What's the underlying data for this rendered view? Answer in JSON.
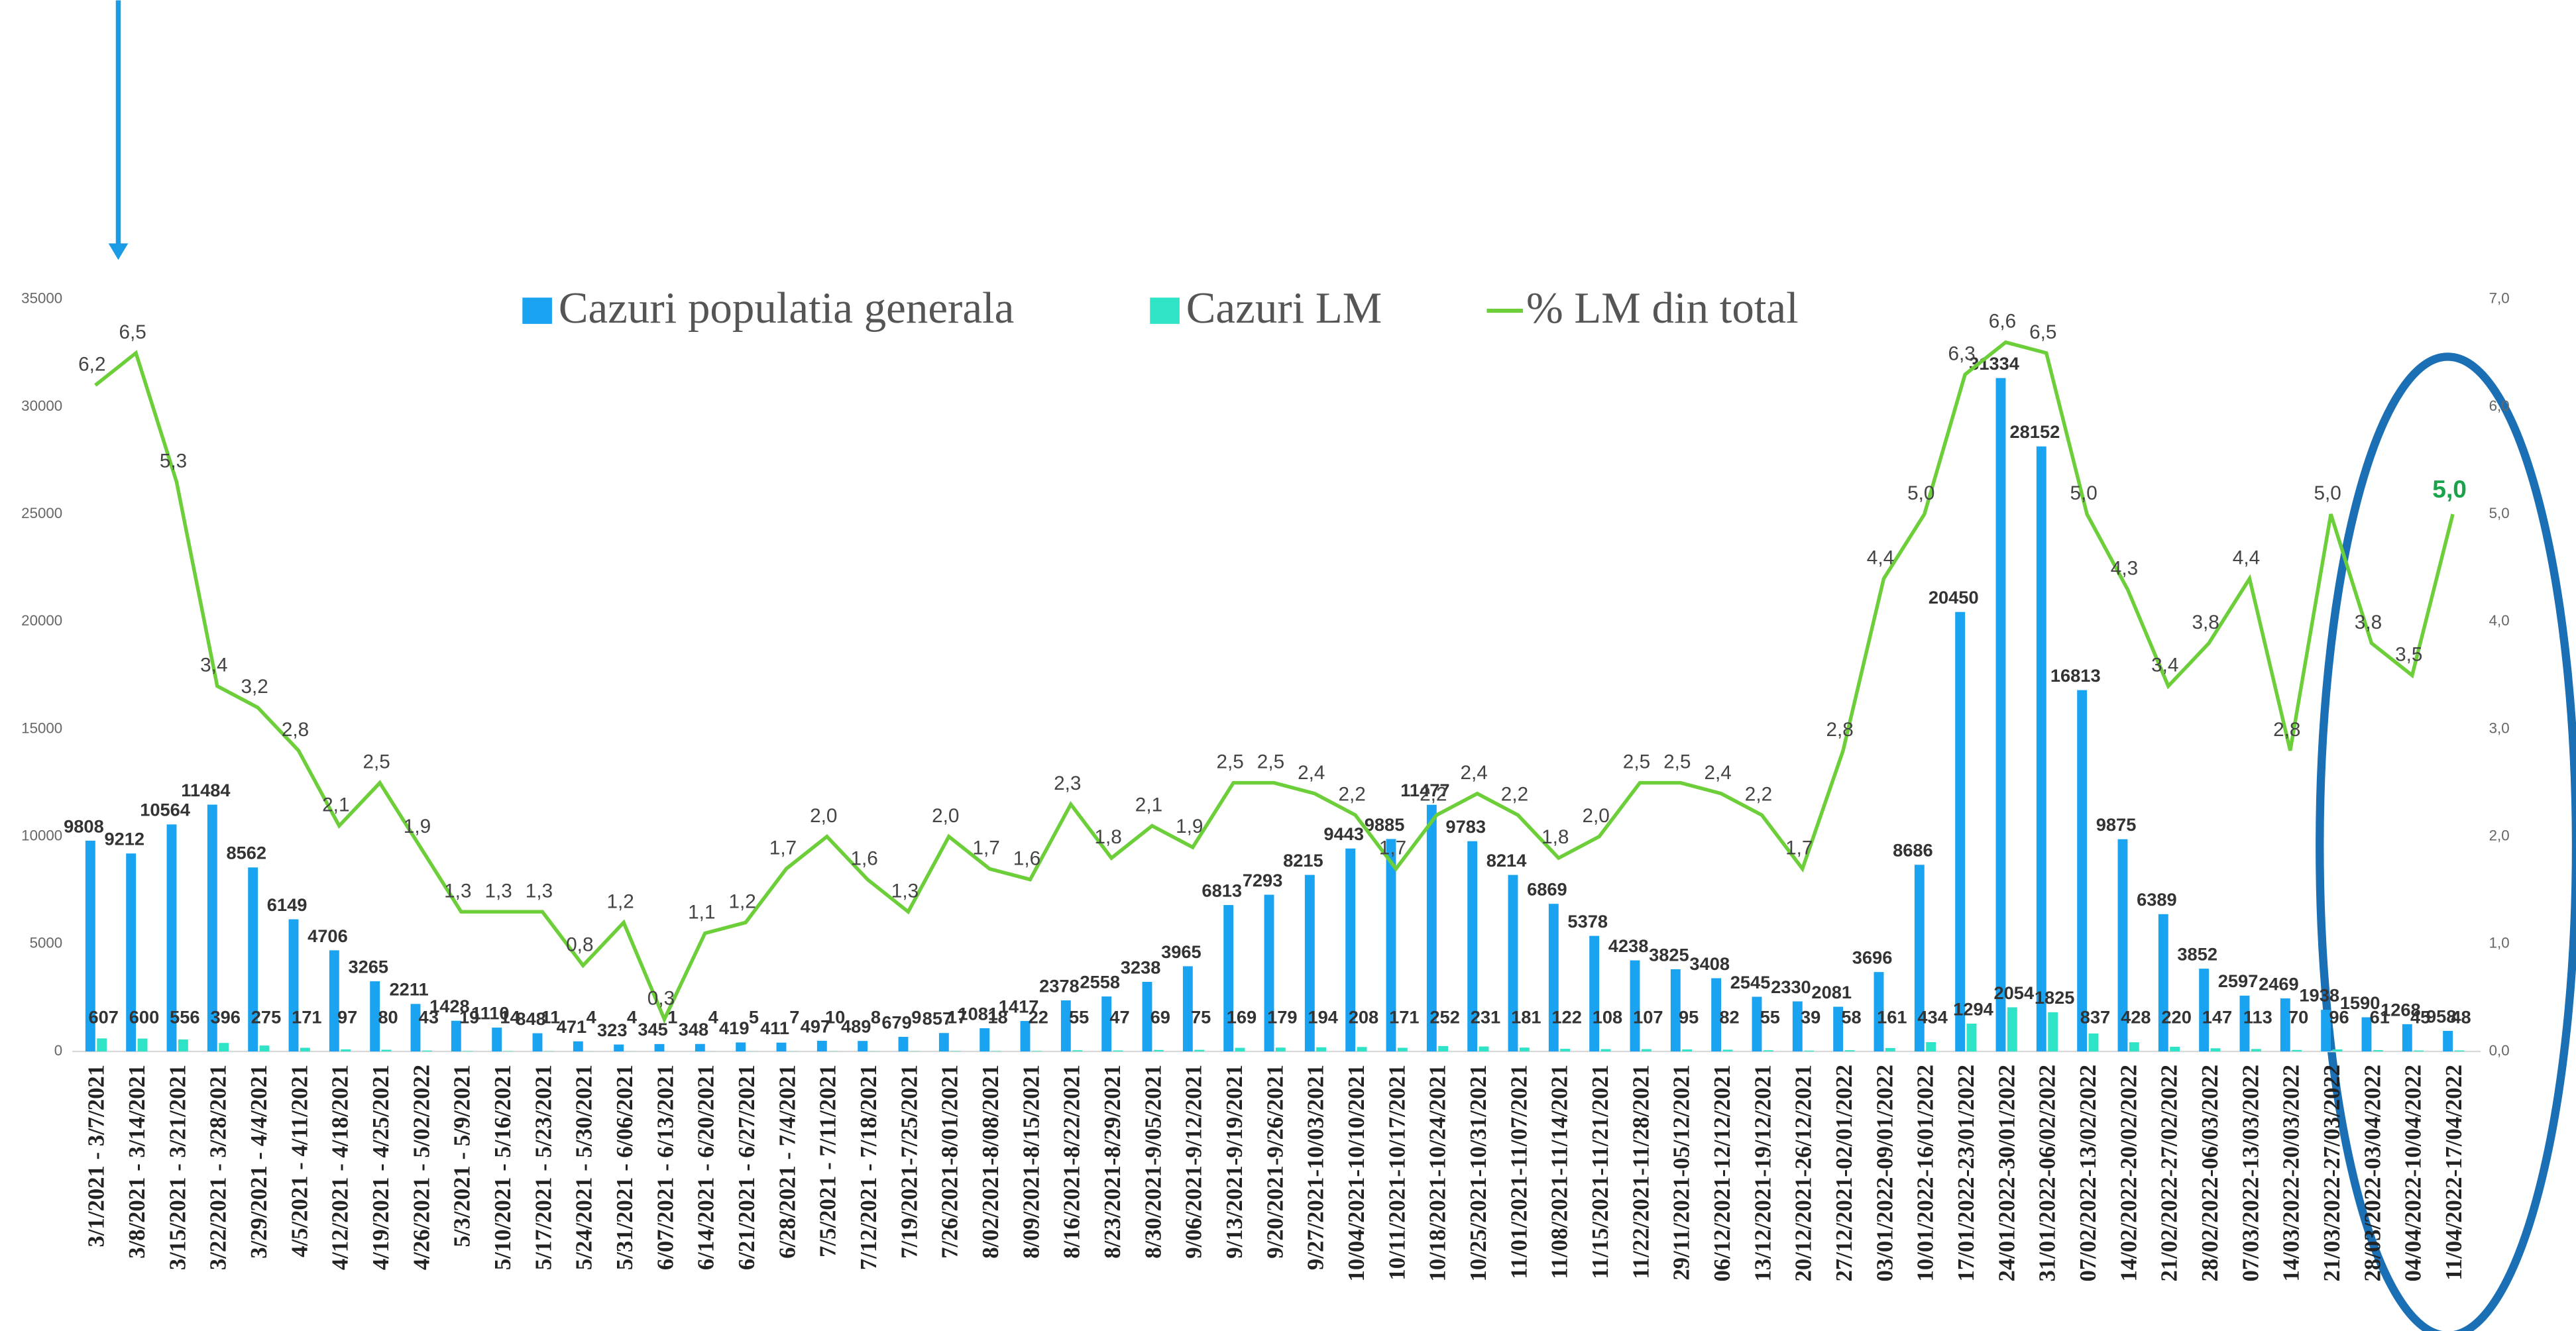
{
  "chart_data": {
    "type": "bar-line",
    "categories": [
      "3/1/2021 - 3/7/2021",
      "3/8/2021 - 3/14/2021",
      "3/15/2021 - 3/21/2021",
      "3/22/2021 - 3/28/2021",
      "3/29/2021 - 4/4/2021",
      "4/5/2021 - 4/11/2021",
      "4/12/2021 - 4/18/2021",
      "4/19/2021 - 4/25/2021",
      "4/26/2021 - 5/02/2022",
      "5/3/2021 - 5/9/2021",
      "5/10/2021 - 5/16/2021",
      "5/17/2021 - 5/23/2021",
      "5/24/2021 - 5/30/2021",
      "5/31/2021 - 6/06/2021",
      "6/07/2021 - 6/13/2021",
      "6/14/2021 - 6/20/2021",
      "6/21/2021 - 6/27/2021",
      "6/28/2021 - 7/4/2021",
      "7/5/2021 - 7/11/2021",
      "7/12/2021 - 7/18/2021",
      "7/19/2021-7/25/2021",
      "7/26/2021-8/01/2021",
      "8/02/2021-8/08/2021",
      "8/09/2021-8/15/2021",
      "8/16/2021-8/22/2021",
      "8/23/2021-8/29/2021",
      "8/30/2021-9/05/2021",
      "9/06/2021-9/12/2021",
      "9/13/2021-9/19/2021",
      "9/20/2021-9/26/2021",
      "9/27/2021-10/03/2021",
      "10/04/2021-10/10/2021",
      "10/11/2021-10/17/2021",
      "10/18/2021-10/24/2021",
      "10/25/2021-10/31/2021",
      "11/01/2021-11/07/2021",
      "11/08/2021-11/14/2021",
      "11/15/2021-11/21/2021",
      "11/22/2021-11/28/2021",
      "29/11/2021-05/12/2021",
      "06/12/2021-12/12/2021",
      "13/12/2021-19/12/2021",
      "20/12/2021-26/12/2021",
      "27/12/2021-02/01/2022",
      "03/01/2022-09/01/2022",
      "10/01/2022-16/01/2022",
      "17/01/2022-23/01/2022",
      "24/01/2022-30/01/2022",
      "31/01/2022-06/02/2022",
      "07/02/2022-13/02/2022",
      "14/02/2022-20/02/2022",
      "21/02/2022-27/02/2022",
      "28/02/2022-06/03/2022",
      "07/03/2022-13/03/2022",
      "14/03/2022-20/03/2022",
      "21/03/2022-27/03/2022",
      "28/03/2022-03/04/2022",
      "04/04/2022-10/04/2022",
      "11/04/2022-17/04/2022"
    ],
    "series": [
      {
        "name": "Cazuri populatia generala",
        "color": "#1aa3f0",
        "values": [
          9808,
          9212,
          10564,
          11484,
          8562,
          6149,
          4706,
          3265,
          2211,
          1428,
          1110,
          848,
          471,
          323,
          345,
          348,
          419,
          411,
          497,
          489,
          679,
          857,
          1081,
          1417,
          2378,
          2558,
          3238,
          3965,
          6813,
          7293,
          8215,
          9443,
          9885,
          11477,
          9783,
          8214,
          6869,
          5378,
          4238,
          3825,
          3408,
          2545,
          2330,
          2081,
          3696,
          8686,
          20450,
          31334,
          28152,
          16813,
          9875,
          6389,
          3852,
          2597,
          2469,
          1938,
          1590,
          1268,
          958
        ]
      },
      {
        "name": "Cazuri LM",
        "color": "#2ee3c6",
        "values": [
          607,
          600,
          556,
          396,
          275,
          171,
          97,
          80,
          43,
          19,
          14,
          11,
          4,
          4,
          1,
          4,
          5,
          7,
          10,
          8,
          9,
          17,
          18,
          22,
          55,
          47,
          69,
          75,
          169,
          179,
          194,
          208,
          171,
          252,
          231,
          181,
          122,
          108,
          107,
          95,
          82,
          55,
          39,
          58,
          161,
          434,
          1294,
          2054,
          1825,
          837,
          428,
          220,
          147,
          113,
          70,
          96,
          61,
          45,
          48
        ]
      },
      {
        "name": "% LM din total",
        "color": "#6ccf3a",
        "axis": "y2",
        "values": [
          6.2,
          6.5,
          5.3,
          3.4,
          3.2,
          2.8,
          2.1,
          2.5,
          1.9,
          1.3,
          1.3,
          1.3,
          0.8,
          1.2,
          0.3,
          1.1,
          1.2,
          1.7,
          2.0,
          1.6,
          1.3,
          2.0,
          1.7,
          1.6,
          2.3,
          1.8,
          2.1,
          1.9,
          2.5,
          2.5,
          2.4,
          2.2,
          1.7,
          2.2,
          2.4,
          2.2,
          1.8,
          2.0,
          2.5,
          2.5,
          2.4,
          2.2,
          1.7,
          2.8,
          4.4,
          5.0,
          6.3,
          6.6,
          6.5,
          5.0,
          4.3,
          3.4,
          3.8,
          4.4,
          2.8,
          5.0,
          3.8,
          3.5,
          5.0
        ],
        "value_labels": [
          "6,2",
          "6,5",
          "5,3",
          "3,4",
          "3,2",
          "2,8",
          "2,1",
          "2,5",
          "1,9",
          "1,3",
          "1,3",
          "1,3",
          "0,8",
          "1,2",
          "0,3",
          "1,1",
          "1,2",
          "1,7",
          "2,0",
          "1,6",
          "1,3",
          "2,0",
          "1,7",
          "1,6",
          "2,3",
          "1,8",
          "2,1",
          "1,9",
          "2,5",
          "2,5",
          "2,4",
          "2,2",
          "1,7",
          "2,2",
          "2,4",
          "2,2",
          "1,8",
          "2,0",
          "2,5",
          "2,5",
          "2,4",
          "2,2",
          "1,7",
          "2,8",
          "4,4",
          "5,0",
          "6,3",
          "6,6",
          "6,5",
          "5,0",
          "4,3",
          "3,4",
          "3,8",
          "4,4",
          "2,8",
          "5,0",
          "3,8",
          "3,5",
          "5,0"
        ]
      }
    ],
    "ylim": [
      0,
      35000
    ],
    "yticks": [
      0,
      5000,
      10000,
      15000,
      20000,
      25000,
      30000,
      35000
    ],
    "y2lim": [
      0,
      7
    ],
    "y2ticks": [
      {
        "value": 0,
        "label": "0,0"
      },
      {
        "value": 1,
        "label": "1,0"
      },
      {
        "value": 2,
        "label": "2,0"
      },
      {
        "value": 3,
        "label": "3,0"
      },
      {
        "value": 4,
        "label": "4,0"
      },
      {
        "value": 5,
        "label": "5,0"
      },
      {
        "value": 6,
        "label": "6,0"
      },
      {
        "value": 7,
        "label": "7,0"
      }
    ]
  }
}
